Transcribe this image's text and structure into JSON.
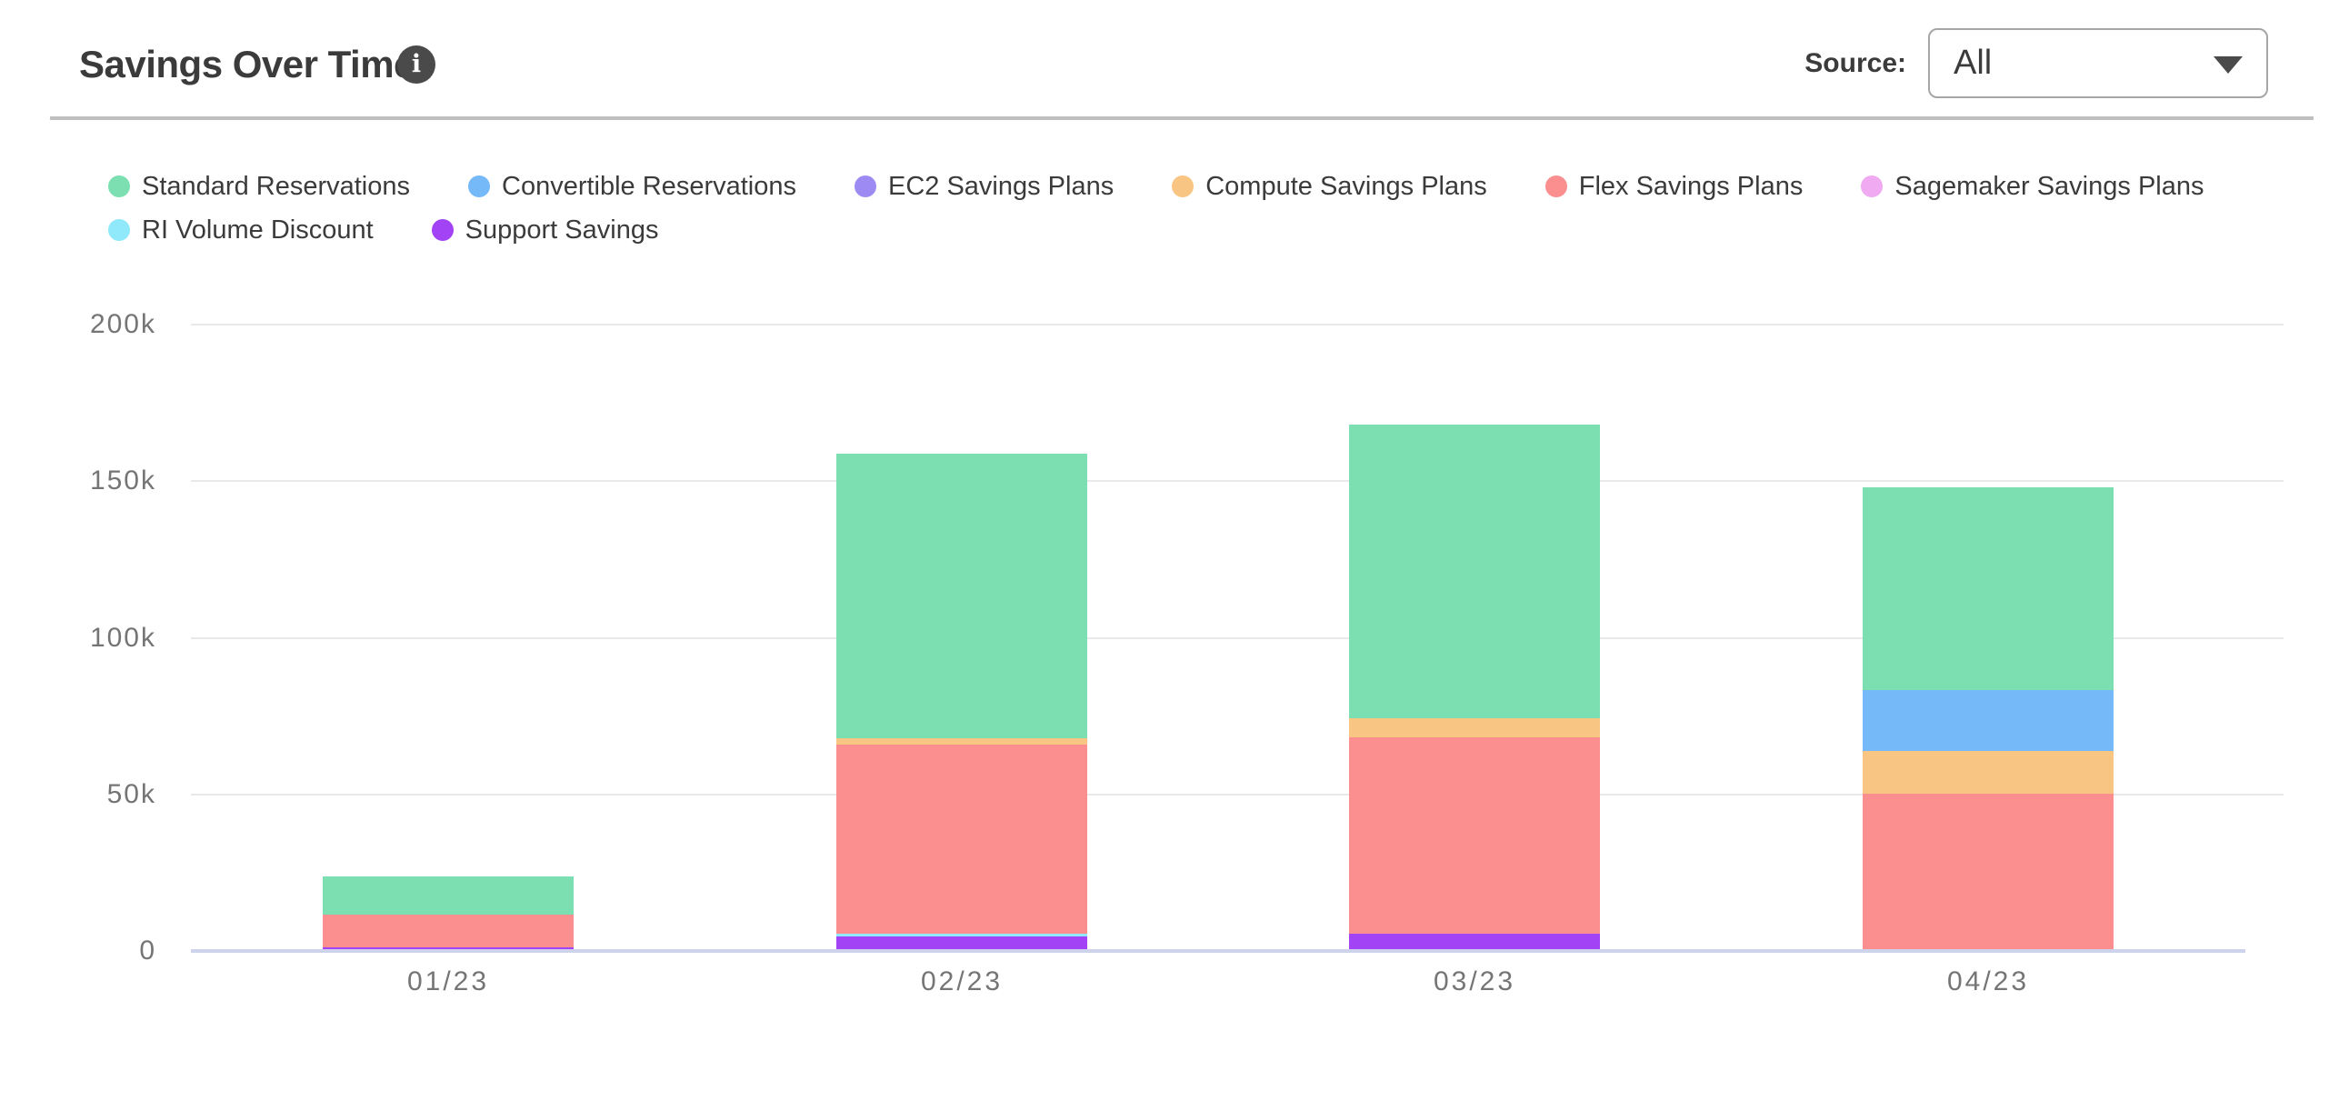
{
  "header": {
    "title": "Savings Over Time",
    "info_icon_glyph": "i",
    "source_label": "Source:",
    "source_value": "All"
  },
  "chart_data": {
    "type": "bar",
    "stacked": true,
    "title": "Savings Over Time",
    "categories": [
      "01/23",
      "02/23",
      "03/23",
      "04/23"
    ],
    "series": [
      {
        "name": "Standard Reservations",
        "color": "#7cdfb1",
        "values": [
          12100,
          90700,
          93800,
          64600
        ]
      },
      {
        "name": "Convertible Reservations",
        "color": "#75b9f9",
        "values": [
          0,
          0,
          0,
          19400
        ]
      },
      {
        "name": "EC2 Savings Plans",
        "color": "#9d8bf3",
        "values": [
          0,
          0,
          0,
          0
        ]
      },
      {
        "name": "Compute Savings Plans",
        "color": "#f9c583",
        "values": [
          0,
          2100,
          6100,
          13700
        ]
      },
      {
        "name": "Flex Savings Plans",
        "color": "#fb8f8f",
        "values": [
          10400,
          60400,
          62900,
          49700
        ]
      },
      {
        "name": "Sagemaker Savings Plans",
        "color": "#efaaf2",
        "values": [
          0,
          0,
          0,
          0
        ]
      },
      {
        "name": "RI Volume Discount",
        "color": "#8fe9fa",
        "values": [
          0,
          900,
          0,
          0
        ]
      },
      {
        "name": "Support Savings",
        "color": "#a343f6",
        "values": [
          700,
          4000,
          4800,
          0
        ]
      }
    ],
    "stack_order": "reverse-of-legend (Support Savings at bottom, Standard Reservations on top)",
    "yticks": [
      {
        "value": 0,
        "label": "0"
      },
      {
        "value": 50000,
        "label": "50k"
      },
      {
        "value": 100000,
        "label": "100k"
      },
      {
        "value": 150000,
        "label": "150k"
      },
      {
        "value": 200000,
        "label": "200k"
      }
    ],
    "ylim": [
      0,
      200000
    ],
    "grid": "horizontal",
    "legend_position": "top-left, two rows"
  },
  "colors": {
    "text": "#3b3b3b",
    "tick_label": "#757575",
    "gridline": "#e9e9e9",
    "axis_baseline": "#cdd3ea",
    "divider": "#bfbfbf",
    "info_icon_bg": "#4a4a4a",
    "select_border": "#a6a6a6"
  }
}
